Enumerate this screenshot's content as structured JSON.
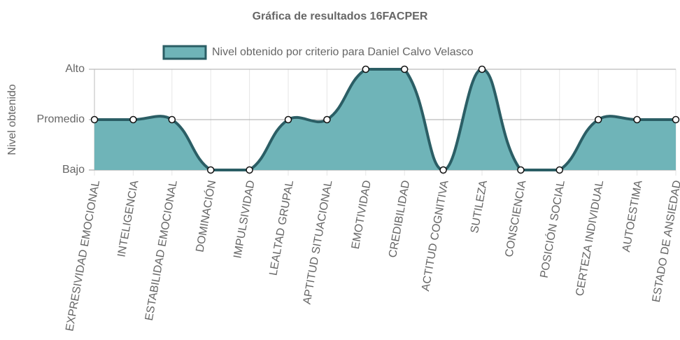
{
  "chart_data": {
    "type": "line",
    "title": "Gráfica de resultados 16FACPER",
    "y_label": "Nivel obtenido",
    "categories": [
      "EXPRESIVIDAD EMOCIONAL",
      "INTELIGENCIA",
      "ESTABILIDAD EMOCIONAL",
      "DOMINACIÓN",
      "IMPULSIVIDAD",
      "LEALTAD GRUPAL",
      "APTITUD SITUACIONAL",
      "EMOTIVIDAD",
      "CREDIBILIDAD",
      "ACTITUD COGNITIVA",
      "SUTILEZA",
      "CONSCIENCIA",
      "POSICIÓN SOCIAL",
      "CERTEZA INDIVIDUAL",
      "AUTOESTIMA",
      "ESTADO DE ANSIEDAD"
    ],
    "series": [
      {
        "name": "Nivel obtenido por criterio para Daniel Calvo Velasco",
        "color": "#2b5e65",
        "fill_color": "#6fb4b8",
        "values": [
          2,
          2,
          2,
          1,
          1,
          2,
          2,
          3,
          3,
          1,
          3,
          1,
          1,
          2,
          2,
          2
        ]
      }
    ],
    "ylim": [
      1,
      3
    ],
    "yticks": [
      {
        "value": 1,
        "label": "Bajo"
      },
      {
        "value": 2,
        "label": "Promedio"
      },
      {
        "value": 3,
        "label": "Alto"
      }
    ],
    "grid": true,
    "legend": "top"
  }
}
